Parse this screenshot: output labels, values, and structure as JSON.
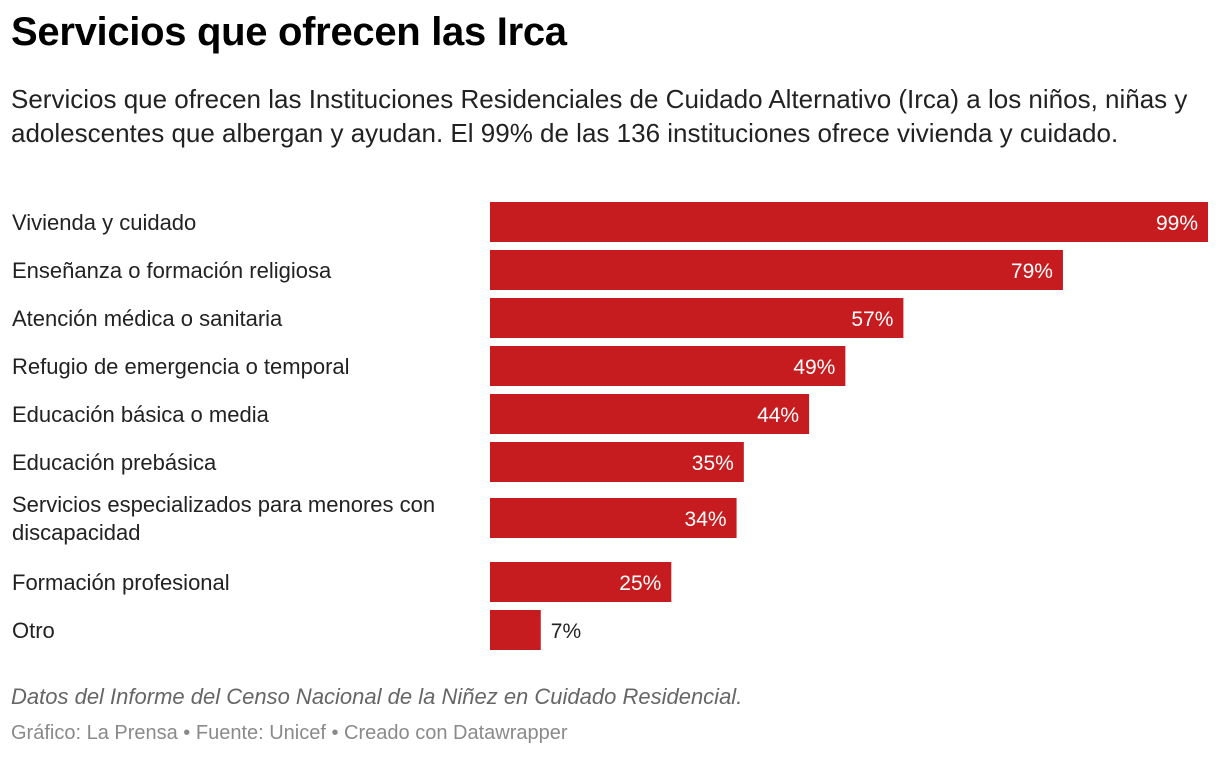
{
  "title": "Servicios que ofrecen las Irca",
  "subtitle": "Servicios que ofrecen las Instituciones Residenciales de Cuidado Alternativo (Irca) a los niños, niñas y adolescentes que albergan y ayudan. El 99% de las 136 instituciones ofrece vivienda y cuidado.",
  "notes": "Datos del Informe del Censo Nacional de la Niñez en Cuidado Residencial.",
  "footer": "Gráfico: La Prensa • Fuente: Unicef • Creado con Datawrapper",
  "colors": {
    "bar": "#c71c1f",
    "label_inside": "#ffffff",
    "label_outside": "#222222"
  },
  "chart_data": {
    "type": "bar",
    "orientation": "horizontal",
    "categories": [
      "Vivienda y cuidado",
      "Enseñanza o formación religiosa",
      "Atención médica o sanitaria",
      "Refugio de emergencia o temporal",
      "Educación básica o media",
      "Educación prebásica",
      "Servicios especializados para menores con discapacidad",
      "Formación profesional",
      "Otro"
    ],
    "values": [
      99,
      79,
      57,
      49,
      44,
      35,
      34,
      25,
      7
    ],
    "value_labels": [
      "99%",
      "79%",
      "57%",
      "49%",
      "44%",
      "35%",
      "34%",
      "25%",
      "7%"
    ],
    "unit": "%",
    "xlim": [
      0,
      99
    ],
    "grid": false,
    "legend": "none"
  }
}
